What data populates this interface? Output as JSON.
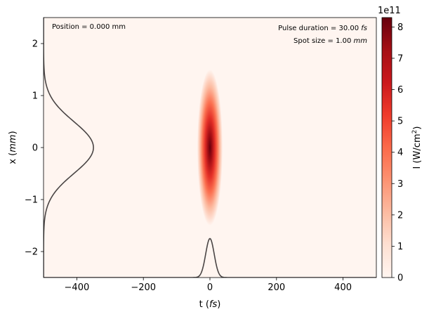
{
  "chart_data": {
    "type": "heatmap",
    "title": "",
    "xlabel": "t",
    "xlabel_unit": "fs",
    "ylabel": "x",
    "ylabel_unit": "mm",
    "xlim": [
      -500,
      500
    ],
    "ylim": [
      -2.5,
      2.5
    ],
    "xticks": [
      -400,
      -200,
      0,
      200,
      400
    ],
    "xtick_labels": [
      "−400",
      "−200",
      "0",
      "200",
      "400"
    ],
    "yticks": [
      -2,
      -1,
      0,
      1,
      2
    ],
    "ytick_labels": [
      "−2",
      "−1",
      "0",
      "1",
      "2"
    ],
    "colormap": "Reds",
    "colors": {
      "low": "#fff5f0",
      "mid1": "#fcbba1",
      "mid2": "#fb6a4a",
      "mid3": "#cb181d",
      "high": "#67000d",
      "profile_line": "#4a4545"
    },
    "intensity_peak": 830000000000.0,
    "intensity_center": {
      "t_fs": 0,
      "x_mm": 0
    },
    "pulse_duration_fs": 30,
    "spot_size_mm": 1.0,
    "temporal_profile": {
      "center_t_fs": 0,
      "fwhm_fs": 30,
      "baseline_x_mm": -2.5,
      "peak_x_mm": -1.75
    },
    "spatial_profile": {
      "center_x_mm": 0,
      "spot_mm": 1.0,
      "baseline_t_fs": -500,
      "peak_t_fs": -350
    },
    "colorbar": {
      "label": "I (W/cm",
      "label_sup": "2",
      "label_end": ")",
      "multiplier_base": "1e11",
      "ticks": [
        0,
        1,
        2,
        3,
        4,
        5,
        6,
        7,
        8
      ],
      "tick_labels": [
        "0",
        "1",
        "2",
        "3",
        "4",
        "5",
        "6",
        "7",
        "8"
      ],
      "range": [
        0,
        8.3
      ]
    },
    "annotations": {
      "position_text": "Position = 0.000 mm",
      "duration_text": "Pulse duration = 30.00 ",
      "duration_unit": "fs",
      "spot_text": "Spot size = 1.00 ",
      "spot_unit": "mm"
    },
    "grid": false,
    "legend": "none"
  }
}
